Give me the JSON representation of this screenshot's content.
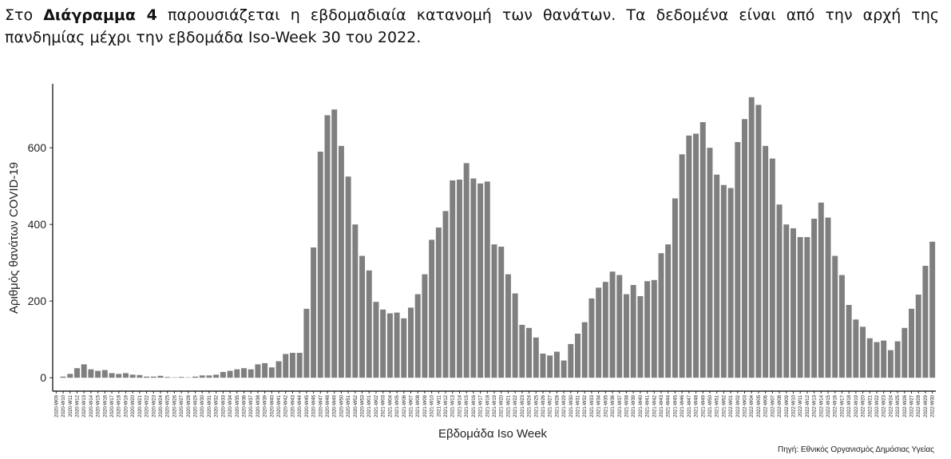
{
  "paragraph": {
    "before": "Στο ",
    "bold": "Διάγραμμα 4",
    "after": " παρουσιάζεται η εβδομαδιαία κατανομή των θανάτων.  Τα δεδομένα είναι από την αρχή της πανδημίας μέχρι την εβδομάδα Iso-Week 30 του 2022."
  },
  "chart_data": {
    "type": "bar",
    "ylabel": "Αριθμός θανάτων COVID-19",
    "xlabel": "Εβδομάδα Iso Week",
    "source": "Πηγή: Εθνικός Οργανισμός Δημόσιας Υγείας",
    "color": "#7f7f7f",
    "ylim": [
      -35,
      767
    ],
    "yticks": [
      0,
      200,
      400,
      600
    ],
    "categories": [
      "2020-W09",
      "2020-W10",
      "2020-W11",
      "2020-W12",
      "2020-W13",
      "2020-W14",
      "2020-W15",
      "2020-W16",
      "2020-W17",
      "2020-W18",
      "2020-W19",
      "2020-W20",
      "2020-W21",
      "2020-W22",
      "2020-W23",
      "2020-W24",
      "2020-W25",
      "2020-W26",
      "2020-W27",
      "2020-W28",
      "2020-W29",
      "2020-W30",
      "2020-W31",
      "2020-W32",
      "2020-W33",
      "2020-W34",
      "2020-W35",
      "2020-W36",
      "2020-W37",
      "2020-W38",
      "2020-W39",
      "2020-W40",
      "2020-W41",
      "2020-W42",
      "2020-W43",
      "2020-W44",
      "2020-W45",
      "2020-W46",
      "2020-W47",
      "2020-W48",
      "2020-W49",
      "2020-W50",
      "2020-W51",
      "2020-W52",
      "2020-W53",
      "2021-W01",
      "2021-W02",
      "2021-W03",
      "2021-W04",
      "2021-W05",
      "2021-W06",
      "2021-W07",
      "2021-W08",
      "2021-W09",
      "2021-W10",
      "2021-W11",
      "2021-W12",
      "2021-W13",
      "2021-W14",
      "2021-W15",
      "2021-W16",
      "2021-W17",
      "2021-W18",
      "2021-W19",
      "2021-W20",
      "2021-W21",
      "2021-W22",
      "2021-W23",
      "2021-W24",
      "2021-W25",
      "2021-W26",
      "2021-W27",
      "2021-W28",
      "2021-W29",
      "2021-W30",
      "2021-W31",
      "2021-W32",
      "2021-W33",
      "2021-W34",
      "2021-W35",
      "2021-W36",
      "2021-W37",
      "2021-W38",
      "2021-W39",
      "2021-W40",
      "2021-W41",
      "2021-W42",
      "2021-W43",
      "2021-W44",
      "2021-W45",
      "2021-W46",
      "2021-W47",
      "2021-W48",
      "2021-W49",
      "2021-W50",
      "2021-W51",
      "2021-W52",
      "2022-W01",
      "2022-W02",
      "2022-W03",
      "2022-W04",
      "2022-W05",
      "2022-W06",
      "2022-W07",
      "2022-W08",
      "2022-W09",
      "2022-W10",
      "2022-W11",
      "2022-W12",
      "2022-W13",
      "2022-W14",
      "2022-W15",
      "2022-W16",
      "2022-W17",
      "2022-W18",
      "2022-W19",
      "2022-W20",
      "2022-W21",
      "2022-W22",
      "2022-W23",
      "2022-W24",
      "2022-W25",
      "2022-W26",
      "2022-W27",
      "2022-W28",
      "2022-W29",
      "2022-W30"
    ],
    "values": [
      0,
      3,
      10,
      25,
      35,
      22,
      18,
      20,
      12,
      10,
      12,
      8,
      7,
      3,
      3,
      5,
      2,
      1,
      2,
      1,
      3,
      6,
      6,
      8,
      15,
      18,
      22,
      25,
      22,
      35,
      38,
      27,
      43,
      62,
      65,
      65,
      180,
      340,
      590,
      685,
      700,
      605,
      525,
      400,
      318,
      280,
      198,
      178,
      168,
      170,
      155,
      183,
      218,
      270,
      360,
      392,
      435,
      515,
      517,
      560,
      520,
      507,
      512,
      348,
      342,
      270,
      220,
      138,
      130,
      105,
      63,
      58,
      68,
      45,
      88,
      115,
      145,
      207,
      235,
      250,
      277,
      268,
      218,
      242,
      213,
      252,
      255,
      325,
      348,
      468,
      583,
      632,
      637,
      667,
      600,
      530,
      503,
      495,
      615,
      675,
      732,
      712,
      605,
      572,
      452,
      400,
      390,
      367,
      367,
      415,
      457,
      418,
      318,
      268,
      190,
      152,
      133,
      103,
      93,
      97,
      72,
      95,
      130,
      180,
      217,
      292,
      355
    ]
  }
}
